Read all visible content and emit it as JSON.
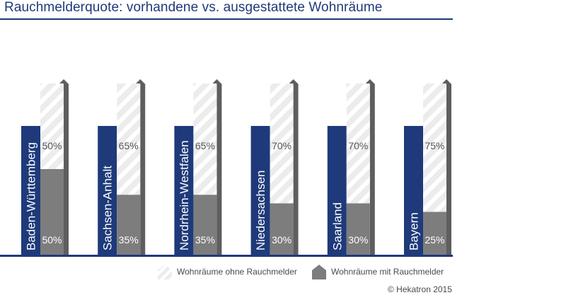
{
  "title": "Rauchmelderquote: vorhandene vs. ausgestattete Wohnräume",
  "copyright": "© Hekatron 2015",
  "colors": {
    "title": "#1e3a7a",
    "with_detector": "#7d7d7d",
    "without_hatch_bg": "#ececec",
    "without_hatch_line": "#ffffff",
    "side": "#5e5e5e",
    "label_text": "#ffffff",
    "percent_text": "#555555",
    "axis": "#1e3a7a"
  },
  "legend": {
    "without_label": "Wohnräume ohne Rauchmelder",
    "with_label": "Wohnräume mit Rauchmelder"
  },
  "chart_data": {
    "type": "bar",
    "stacked": true,
    "unit": "%",
    "categories": [
      "Baden-Württemberg",
      "Sachsen-Anhalt",
      "Nordrhein-Westfalen",
      "Niedersachsen",
      "Saarland",
      "Bayern"
    ],
    "series": [
      {
        "name": "Wohnräume mit Rauchmelder",
        "values": [
          50,
          35,
          35,
          30,
          30,
          25
        ],
        "labels": [
          "50%",
          "35%",
          "35%",
          "30%",
          "30%",
          "25%"
        ]
      },
      {
        "name": "Wohnräume ohne Rauchmelder",
        "values": [
          50,
          65,
          65,
          70,
          70,
          75
        ],
        "labels": [
          "50%",
          "65%",
          "65%",
          "70%",
          "70%",
          "75%"
        ]
      }
    ],
    "ylim": [
      0,
      100
    ],
    "legend_position": "bottom-right"
  }
}
